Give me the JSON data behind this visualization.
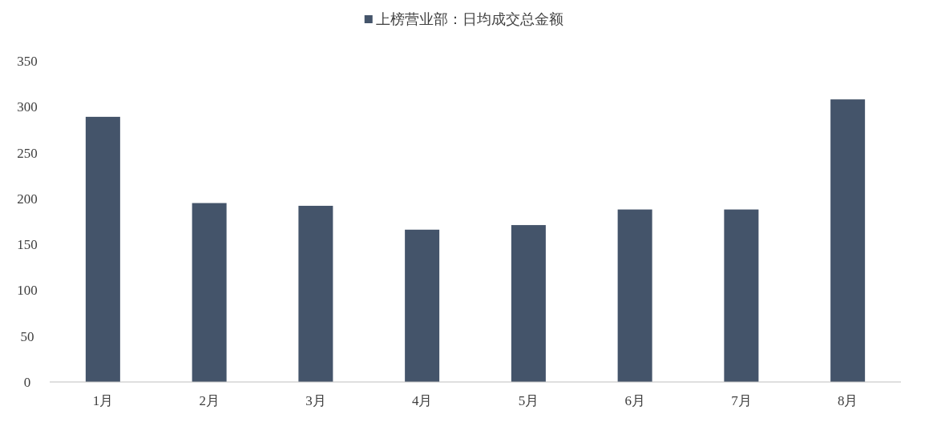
{
  "chart_data": {
    "type": "bar",
    "categories": [
      "1月",
      "2月",
      "3月",
      "4月",
      "5月",
      "6月",
      "7月",
      "8月"
    ],
    "series": [
      {
        "name": "上榜营业部：日均成交总金额",
        "color": "#44546a",
        "values": [
          289,
          195,
          192,
          166,
          171,
          188,
          188,
          308
        ]
      }
    ],
    "ylim": [
      0,
      350
    ],
    "yticks": [
      0,
      50,
      100,
      150,
      200,
      250,
      300,
      350
    ],
    "legend": "top",
    "grid": false
  }
}
